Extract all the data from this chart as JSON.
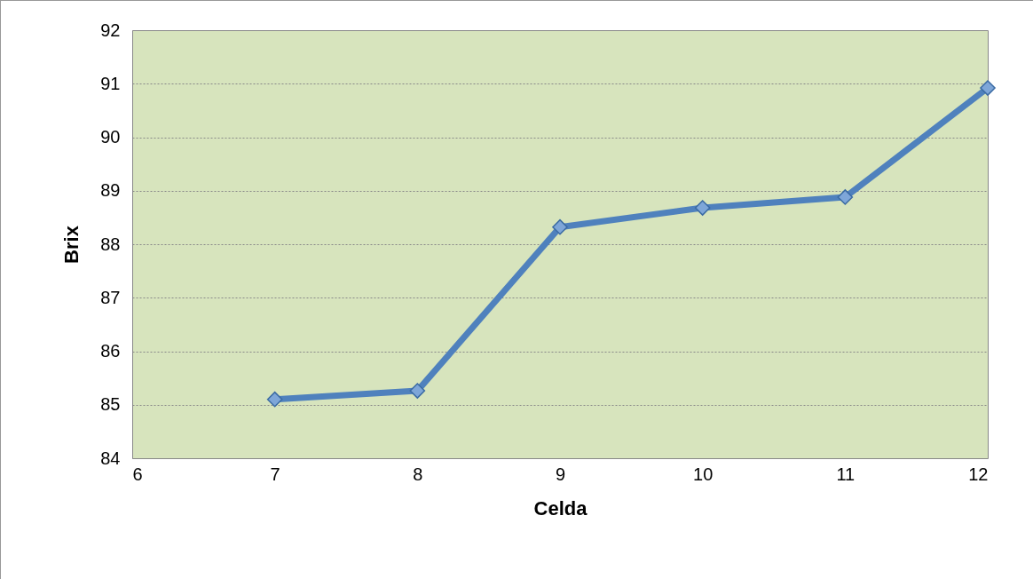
{
  "chart_data": {
    "type": "line",
    "xlabel": "Celda",
    "ylabel": "Brix",
    "x": [
      7,
      8,
      9,
      10,
      11,
      12
    ],
    "values": [
      85.1,
      85.26,
      88.32,
      88.68,
      88.88,
      90.92
    ],
    "color": "#4f81bd",
    "xlim": [
      6,
      12
    ],
    "xticks": [
      6,
      7,
      8,
      9,
      10,
      11,
      12
    ],
    "ylim": [
      84,
      92
    ],
    "yticks": [
      84,
      85,
      86,
      87,
      88,
      89,
      90,
      91,
      92
    ],
    "grid": "y",
    "marker": "diamond",
    "line_style": "solid"
  }
}
